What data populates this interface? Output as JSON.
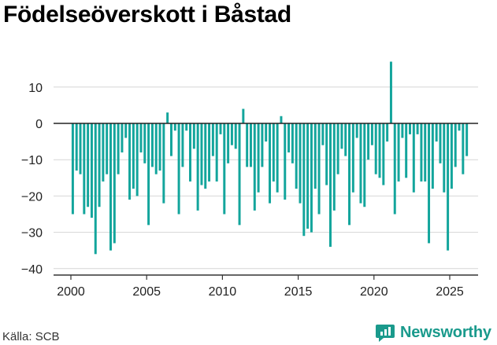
{
  "title": "Födelseöverskott i Båstad",
  "source": "Källa: SCB",
  "brand": "Newsworthy",
  "colors": {
    "bar": "#13a59c",
    "brand": "#1a9a8c",
    "grid": "#d6d6d6",
    "zero": "#222222"
  },
  "chart_data": {
    "type": "bar",
    "title": "Födelseöverskott i Båstad",
    "xlabel": "",
    "ylabel": "",
    "ylim": [
      -42,
      20
    ],
    "xlim": [
      1999.4,
      2026.7
    ],
    "grid": true,
    "x_ticks": [
      2000,
      2005,
      2010,
      2015,
      2020,
      2025
    ],
    "x_tick_labels": [
      "2000",
      "2005",
      "2010",
      "2015",
      "2020",
      "2025"
    ],
    "y_ticks": [
      10,
      0,
      -10,
      -20,
      -30,
      -40
    ],
    "y_tick_labels": [
      "10",
      "0",
      "−10",
      "−20",
      "−30",
      "−40"
    ],
    "series": [
      {
        "frequency": "quarterly",
        "start": "2000-Q1",
        "values": [
          -25,
          -13,
          -14,
          -25,
          -23,
          -26,
          -36,
          -23,
          -16,
          -14,
          -35,
          -33,
          -14,
          -8,
          -4,
          -21,
          -18,
          -20,
          -8,
          -11,
          -28,
          -12,
          -14,
          -13,
          -22,
          3,
          -9,
          -2,
          -25,
          -12,
          -2,
          -16,
          -7,
          -24,
          -17,
          -18,
          -16,
          -9,
          -16,
          -3,
          -25,
          -11,
          -6,
          -7,
          -28,
          4,
          -12,
          -12,
          -24,
          -19,
          -12,
          -5,
          -22,
          -16,
          -19,
          2,
          -21,
          -8,
          -11,
          -18,
          -22,
          -31,
          -29,
          -30,
          -18,
          -25,
          -6,
          -17,
          -34,
          -24,
          -14,
          -7,
          -9,
          -28,
          -19,
          -4,
          -22,
          -23,
          -10,
          -6,
          -14,
          -15,
          -17,
          -5,
          17,
          -25,
          -16,
          -4,
          -15,
          -3,
          -19,
          -3,
          -16,
          -16,
          -33,
          -18,
          -5,
          -11,
          -19,
          -35,
          -18,
          -12,
          -2,
          -14,
          -9
        ]
      }
    ]
  }
}
